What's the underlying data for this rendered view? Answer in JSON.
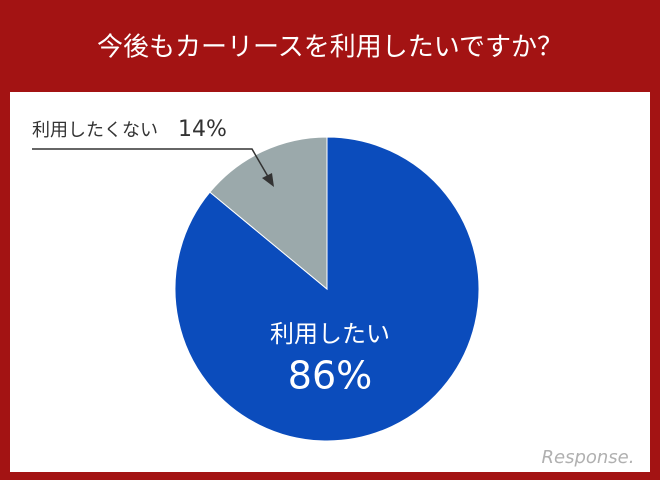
{
  "chart_data": {
    "type": "pie",
    "title": "今後もカーリースを利用したいですか？",
    "categories": [
      "利用したい",
      "利用したくない"
    ],
    "values": [
      86,
      14
    ],
    "value_labels": [
      "86%",
      "14%"
    ],
    "colors": [
      "#0b4cbc",
      "#9ba9ab"
    ]
  },
  "watermark": "Response."
}
